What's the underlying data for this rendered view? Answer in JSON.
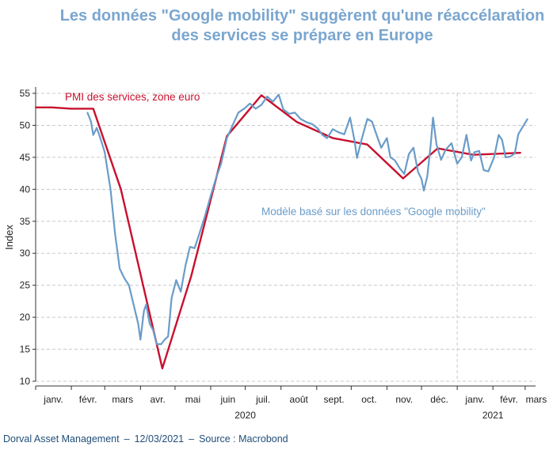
{
  "title_line1": "Les données \"Google mobility\" suggèrent qu'une réaccélaration",
  "title_line2": "des services se prépare en Europe",
  "footer": {
    "source_org": "Dorval Asset Management",
    "sep1": "–",
    "date": "12/03/2021",
    "sep2": "–",
    "source": "Source : Macrobond"
  },
  "colors": {
    "pmi": "#c8102e",
    "mobility": "#6a9cc9",
    "grid": "#c8c8c8",
    "title": "#7aa6cf",
    "axis": "#333333"
  },
  "chart_data": {
    "type": "line",
    "ylabel": "Index",
    "ylim": [
      10,
      55
    ],
    "yticks": [
      10,
      15,
      20,
      25,
      30,
      35,
      40,
      45,
      50,
      55
    ],
    "xlim": [
      "2020-01-01",
      "2021-03-10"
    ],
    "month_ticks": [
      "2020-01-01",
      "2020-02-01",
      "2020-03-01",
      "2020-04-01",
      "2020-05-01",
      "2020-06-01",
      "2020-07-01",
      "2020-08-01",
      "2020-09-01",
      "2020-10-01",
      "2020-11-01",
      "2020-12-01",
      "2021-01-01",
      "2021-02-01",
      "2021-03-01"
    ],
    "month_labels": [
      "janv.",
      "févr.",
      "mars",
      "avr.",
      "mai",
      "juin",
      "juil.",
      "août",
      "sept.",
      "oct.",
      "nov.",
      "déc.",
      "janv.",
      "févr.",
      "mars"
    ],
    "year_labels": [
      {
        "year": "2020",
        "at": "2020-07-01"
      },
      {
        "year": "2021",
        "at": "2021-02-01"
      }
    ],
    "year_divider": "2021-01-01",
    "annotations": [
      {
        "text": "PMI des services, zone euro",
        "series": "pmi"
      },
      {
        "text": "Modèle basé sur les données \"Google mobility\"",
        "series": "mobility"
      }
    ],
    "series": [
      {
        "key": "pmi",
        "name": "PMI des services, zone euro",
        "points": [
          [
            "2020-01-01",
            52.8
          ],
          [
            "2020-01-15",
            52.8
          ],
          [
            "2020-02-01",
            52.6
          ],
          [
            "2020-02-20",
            52.6
          ],
          [
            "2020-03-15",
            40
          ],
          [
            "2020-04-20",
            12
          ],
          [
            "2020-05-15",
            26.4
          ],
          [
            "2020-06-15",
            48.3
          ],
          [
            "2020-07-15",
            54.7
          ],
          [
            "2020-08-15",
            50.5
          ],
          [
            "2020-09-15",
            48
          ],
          [
            "2020-10-15",
            47
          ],
          [
            "2020-11-15",
            41.7
          ],
          [
            "2020-12-15",
            46.4
          ],
          [
            "2021-01-15",
            45.4
          ],
          [
            "2021-02-25",
            45.7
          ]
        ]
      },
      {
        "key": "mobility",
        "name": "Modèle basé sur les données \"Google mobility\"",
        "points": [
          [
            "2020-02-15",
            52
          ],
          [
            "2020-02-18",
            50.6
          ],
          [
            "2020-02-20",
            48.5
          ],
          [
            "2020-02-23",
            49.6
          ],
          [
            "2020-02-26",
            48.1
          ],
          [
            "2020-03-01",
            45.8
          ],
          [
            "2020-03-06",
            40
          ],
          [
            "2020-03-10",
            33
          ],
          [
            "2020-03-14",
            27.6
          ],
          [
            "2020-03-18",
            26.1
          ],
          [
            "2020-03-22",
            25
          ],
          [
            "2020-03-26",
            22
          ],
          [
            "2020-03-30",
            19
          ],
          [
            "2020-04-01",
            16.5
          ],
          [
            "2020-04-04",
            21
          ],
          [
            "2020-04-06",
            22
          ],
          [
            "2020-04-09",
            19
          ],
          [
            "2020-04-12",
            18
          ],
          [
            "2020-04-15",
            15.8
          ],
          [
            "2020-04-19",
            15.8
          ],
          [
            "2020-04-22",
            16.5
          ],
          [
            "2020-04-25",
            17
          ],
          [
            "2020-04-28",
            23
          ],
          [
            "2020-05-02",
            25.8
          ],
          [
            "2020-05-06",
            24
          ],
          [
            "2020-05-10",
            28
          ],
          [
            "2020-05-14",
            31
          ],
          [
            "2020-05-18",
            30.8
          ],
          [
            "2020-05-22",
            33
          ],
          [
            "2020-05-27",
            35.8
          ],
          [
            "2020-06-01",
            39
          ],
          [
            "2020-06-06",
            42
          ],
          [
            "2020-06-10",
            44
          ],
          [
            "2020-06-15",
            48
          ],
          [
            "2020-06-20",
            50
          ],
          [
            "2020-06-25",
            52
          ],
          [
            "2020-06-30",
            52.6
          ],
          [
            "2020-07-05",
            53.4
          ],
          [
            "2020-07-10",
            52.6
          ],
          [
            "2020-07-15",
            53.2
          ],
          [
            "2020-07-20",
            54.5
          ],
          [
            "2020-07-25",
            53.7
          ],
          [
            "2020-07-30",
            54.8
          ],
          [
            "2020-08-03",
            52.5
          ],
          [
            "2020-08-08",
            51.8
          ],
          [
            "2020-08-13",
            52
          ],
          [
            "2020-08-18",
            51
          ],
          [
            "2020-08-23",
            50.5
          ],
          [
            "2020-08-28",
            50.2
          ],
          [
            "2020-09-02",
            49.5
          ],
          [
            "2020-09-06",
            48.5
          ],
          [
            "2020-09-10",
            48
          ],
          [
            "2020-09-15",
            49.4
          ],
          [
            "2020-09-20",
            48.9
          ],
          [
            "2020-09-25",
            48.6
          ],
          [
            "2020-09-30",
            51.2
          ],
          [
            "2020-10-04",
            47.5
          ],
          [
            "2020-10-06",
            44.9
          ],
          [
            "2020-10-10",
            47.8
          ],
          [
            "2020-10-15",
            51
          ],
          [
            "2020-10-19",
            50.6
          ],
          [
            "2020-10-23",
            48.5
          ],
          [
            "2020-10-27",
            46.5
          ],
          [
            "2020-11-01",
            48
          ],
          [
            "2020-11-04",
            45
          ],
          [
            "2020-11-08",
            44.5
          ],
          [
            "2020-11-12",
            43.3
          ],
          [
            "2020-11-16",
            42.4
          ],
          [
            "2020-11-20",
            45.5
          ],
          [
            "2020-11-24",
            46.5
          ],
          [
            "2020-11-28",
            42.7
          ],
          [
            "2020-12-01",
            41.6
          ],
          [
            "2020-12-03",
            39.8
          ],
          [
            "2020-12-06",
            42
          ],
          [
            "2020-12-09",
            47
          ],
          [
            "2020-12-11",
            51.2
          ],
          [
            "2020-12-14",
            47
          ],
          [
            "2020-12-18",
            44.6
          ],
          [
            "2020-12-22",
            46.2
          ],
          [
            "2020-12-27",
            47.2
          ],
          [
            "2021-01-01",
            44
          ],
          [
            "2021-01-05",
            45
          ],
          [
            "2021-01-09",
            48.5
          ],
          [
            "2021-01-13",
            44.5
          ],
          [
            "2021-01-16",
            45.8
          ],
          [
            "2021-01-20",
            46
          ],
          [
            "2021-01-24",
            43
          ],
          [
            "2021-01-28",
            42.8
          ],
          [
            "2021-02-02",
            45
          ],
          [
            "2021-02-06",
            48.5
          ],
          [
            "2021-02-09",
            47.7
          ],
          [
            "2021-02-12",
            45
          ],
          [
            "2021-02-16",
            45.1
          ],
          [
            "2021-02-20",
            45.6
          ],
          [
            "2021-02-23",
            48.6
          ],
          [
            "2021-02-27",
            49.8
          ],
          [
            "2021-03-03",
            51
          ]
        ]
      }
    ]
  }
}
